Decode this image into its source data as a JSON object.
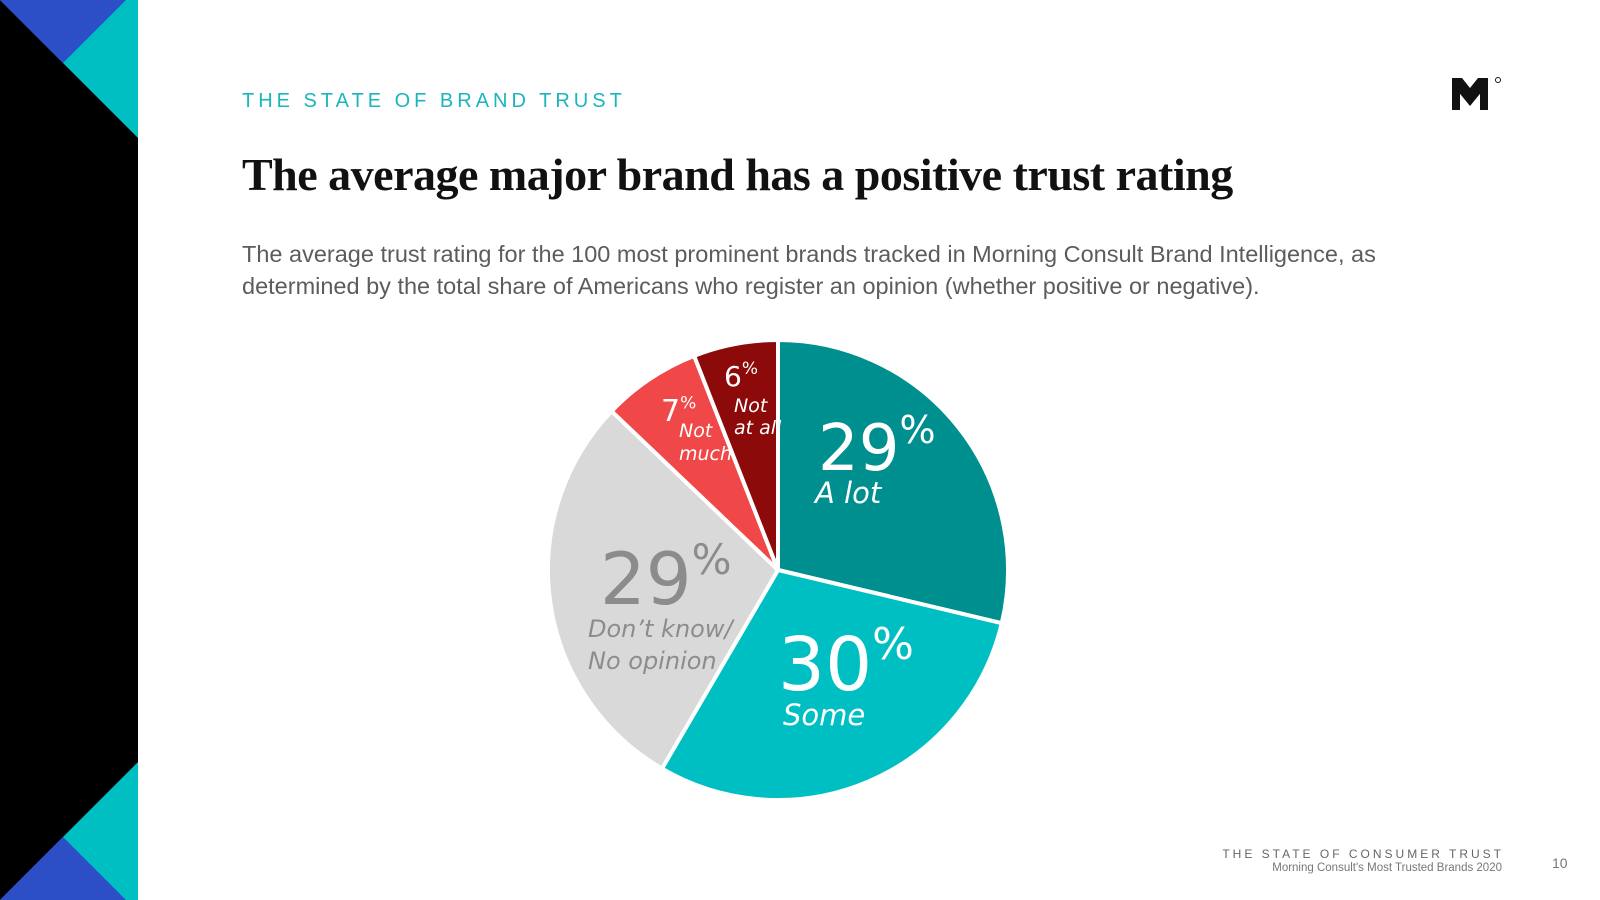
{
  "header": {
    "eyebrow": "THE STATE OF BRAND TRUST",
    "title": "The average major brand has a positive trust rating",
    "subtitle": "The average trust rating for the 100 most prominent brands tracked in Morning Consult Brand Intelligence, as determined by the total share of Americans who register an opinion (whether positive or negative)."
  },
  "footer": {
    "title": "THE STATE OF CONSUMER TRUST",
    "subtitle": "Morning Consult's Most Trusted Brands 2020",
    "page_number": "10"
  },
  "colors": {
    "accent": "#1bb6bd",
    "sidebar_black": "#000000",
    "sidebar_teal": "#00bfc3",
    "sidebar_blue": "#2c4fc7"
  },
  "chart_data": {
    "type": "pie",
    "title": "",
    "unit": "%",
    "slices": [
      {
        "label": "A lot",
        "value": 29,
        "display": "29",
        "color": "#008f8f",
        "text_color": "#ffffff"
      },
      {
        "label": "Some",
        "value": 30,
        "display": "30",
        "color": "#00bfc3",
        "text_color": "#ffffff"
      },
      {
        "label": "Don’t know/ No opinion",
        "value": 29,
        "display": "29",
        "color": "#d9d9d9",
        "text_color": "#8c8c8c"
      },
      {
        "label": "Not much",
        "value": 7,
        "display": "7",
        "color": "#f04848",
        "text_color": "#ffffff"
      },
      {
        "label": "Not at all",
        "value": 6,
        "display": "6",
        "color": "#8c0a0a",
        "text_color": "#ffffff"
      }
    ]
  }
}
